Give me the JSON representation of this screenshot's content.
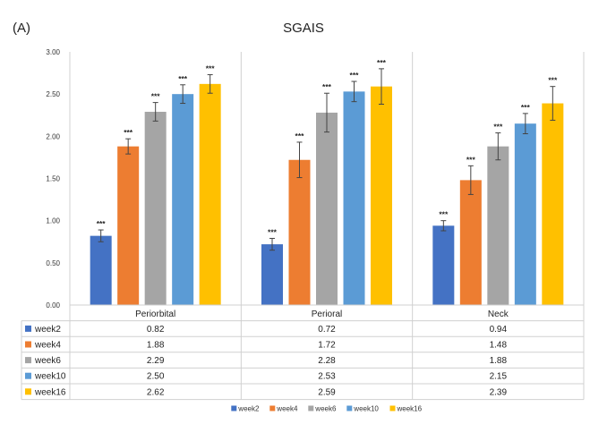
{
  "panel_label": "(A)",
  "chart_data": {
    "type": "bar",
    "title": "SGAIS",
    "categories": [
      "Periorbital",
      "Perioral",
      "Neck"
    ],
    "series": [
      {
        "name": "week2",
        "color": "#4472c4",
        "values": [
          0.82,
          0.72,
          0.94
        ],
        "err": [
          0.07,
          0.07,
          0.06
        ]
      },
      {
        "name": "week4",
        "color": "#ed7d31",
        "values": [
          1.88,
          1.72,
          1.48
        ],
        "err": [
          0.09,
          0.21,
          0.17
        ]
      },
      {
        "name": "week6",
        "color": "#a5a5a5",
        "values": [
          2.29,
          2.28,
          1.88
        ],
        "err": [
          0.11,
          0.23,
          0.16
        ]
      },
      {
        "name": "week10",
        "color": "#5b9bd5",
        "values": [
          2.5,
          2.53,
          2.15
        ],
        "err": [
          0.11,
          0.12,
          0.12
        ]
      },
      {
        "name": "week16",
        "color": "#ffc000",
        "values": [
          2.62,
          2.59,
          2.39
        ],
        "err": [
          0.11,
          0.21,
          0.2
        ]
      }
    ],
    "significance_label": "***",
    "ylim": [
      0,
      3
    ],
    "yticks": [
      "0.00",
      "0.50",
      "1.00",
      "1.50",
      "2.00",
      "2.50",
      "3.00"
    ],
    "table": {
      "rows": [
        {
          "name": "week2",
          "cells": [
            "0.82",
            "0.72",
            "0.94"
          ]
        },
        {
          "name": "week4",
          "cells": [
            "1.88",
            "1.72",
            "1.48"
          ]
        },
        {
          "name": "week6",
          "cells": [
            "2.29",
            "2.28",
            "1.88"
          ]
        },
        {
          "name": "week10",
          "cells": [
            "2.50",
            "2.53",
            "2.15"
          ]
        },
        {
          "name": "week16",
          "cells": [
            "2.62",
            "2.59",
            "2.39"
          ]
        }
      ]
    },
    "legend": {
      "placement": "bottom",
      "entries": [
        "week2",
        "week4",
        "week6",
        "week10",
        "week16"
      ]
    },
    "grid": false
  }
}
